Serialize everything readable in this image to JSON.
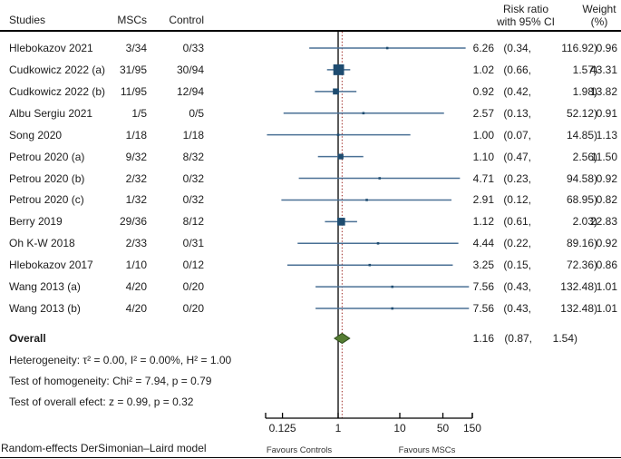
{
  "header": {
    "col_studies": "Studies",
    "col_mscs": "MSCs",
    "col_control": "Control",
    "col_effect_line1": "Risk ratio",
    "col_effect_line2": "with 95% CI",
    "col_weight_line1": "Weight",
    "col_weight_line2": "(%)"
  },
  "stats": {
    "heterogeneity": "Heterogeneity: τ² = 0.00, I² = 0.00%, H² = 1.00",
    "homogeneity": "Test of homogeneity: Chi² = 7.94, p = 0.79",
    "overall_effect": "Test of overall efect: z = 0.99, p = 0.32"
  },
  "footer": {
    "model_note": "Random-effects DerSimonian–Laird model"
  },
  "chart_data": {
    "type": "forest",
    "x_scale": "log",
    "x_axis": {
      "tick_labels": [
        "0.125",
        "1",
        "10",
        "50",
        "150"
      ],
      "tick_values": [
        0.125,
        1,
        10,
        50,
        150
      ],
      "range": [
        0.07,
        140
      ]
    },
    "ref_line_value": 1,
    "overall_estimate_line_value": 1.16,
    "favours": {
      "left": "Favours Controls",
      "right": "Favours MSCs"
    },
    "studies": [
      {
        "name": "Hlebokazov 2021",
        "msc": "3/34",
        "control": "0/33",
        "rr": 6.26,
        "ci": [
          0.34,
          116.92
        ],
        "rr_text": "6.26",
        "lb_text": "(0.34,",
        "ub_text": "116.92)",
        "weight": 0.96,
        "weight_text": "0.96"
      },
      {
        "name": "Cudkowicz 2022 (a)",
        "msc": "31/95",
        "control": "30/94",
        "rr": 1.02,
        "ci": [
          0.66,
          1.57
        ],
        "rr_text": "1.02",
        "lb_text": "(0.66,",
        "ub_text": "1.57)",
        "weight": 43.31,
        "weight_text": "43.31"
      },
      {
        "name": "Cudkowicz 2022 (b)",
        "msc": "11/95",
        "control": "12/94",
        "rr": 0.92,
        "ci": [
          0.42,
          1.98
        ],
        "rr_text": "0.92",
        "lb_text": "(0.42,",
        "ub_text": "1.98)",
        "weight": 13.82,
        "weight_text": "13.82"
      },
      {
        "name": "Albu Sergiu 2021",
        "msc": "1/5",
        "control": "0/5",
        "rr": 2.57,
        "ci": [
          0.13,
          52.12
        ],
        "rr_text": "2.57",
        "lb_text": "(0.13,",
        "ub_text": "52.12)",
        "weight": 0.91,
        "weight_text": "0.91"
      },
      {
        "name": "Song 2020",
        "msc": "1/18",
        "control": "1/18",
        "rr": 1.0,
        "ci": [
          0.07,
          14.85
        ],
        "rr_text": "1.00",
        "lb_text": "(0.07,",
        "ub_text": "14.85)",
        "weight": 1.13,
        "weight_text": "1.13"
      },
      {
        "name": "Petrou 2020 (a)",
        "msc": "9/32",
        "control": "8/32",
        "rr": 1.1,
        "ci": [
          0.47,
          2.56
        ],
        "rr_text": "1.10",
        "lb_text": "(0.47,",
        "ub_text": "2.56)",
        "weight": 11.5,
        "weight_text": "11.50"
      },
      {
        "name": "Petrou 2020 (b)",
        "msc": "2/32",
        "control": "0/32",
        "rr": 4.71,
        "ci": [
          0.23,
          94.58
        ],
        "rr_text": "4.71",
        "lb_text": "(0.23,",
        "ub_text": "94.58)",
        "weight": 0.92,
        "weight_text": "0.92"
      },
      {
        "name": "Petrou 2020 (c)",
        "msc": "1/32",
        "control": "0/32",
        "rr": 2.91,
        "ci": [
          0.12,
          68.95
        ],
        "rr_text": "2.91",
        "lb_text": "(0.12,",
        "ub_text": "68.95)",
        "weight": 0.82,
        "weight_text": "0.82"
      },
      {
        "name": "Berry 2019",
        "msc": "29/36",
        "control": "8/12",
        "rr": 1.12,
        "ci": [
          0.61,
          2.03
        ],
        "rr_text": "1.12",
        "lb_text": "(0.61,",
        "ub_text": "2.03)",
        "weight": 22.83,
        "weight_text": "22.83"
      },
      {
        "name": "Oh K-W 2018",
        "msc": "2/33",
        "control": "0/31",
        "rr": 4.44,
        "ci": [
          0.22,
          89.16
        ],
        "rr_text": "4.44",
        "lb_text": "(0.22,",
        "ub_text": "89.16)",
        "weight": 0.92,
        "weight_text": "0.92"
      },
      {
        "name": "Hlebokazov 2017",
        "msc": "1/10",
        "control": "0/12",
        "rr": 3.25,
        "ci": [
          0.15,
          72.36
        ],
        "rr_text": "3.25",
        "lb_text": "(0.15,",
        "ub_text": "72.36)",
        "weight": 0.86,
        "weight_text": "0.86"
      },
      {
        "name": "Wang 2013 (a)",
        "msc": "4/20",
        "control": "0/20",
        "rr": 7.56,
        "ci": [
          0.43,
          132.48
        ],
        "rr_text": "7.56",
        "lb_text": "(0.43,",
        "ub_text": "132.48)",
        "weight": 1.01,
        "weight_text": "1.01"
      },
      {
        "name": "Wang 2013 (b)",
        "msc": "4/20",
        "control": "0/20",
        "rr": 7.56,
        "ci": [
          0.43,
          132.48
        ],
        "rr_text": "7.56",
        "lb_text": "(0.43,",
        "ub_text": "132.48)",
        "weight": 1.01,
        "weight_text": "1.01"
      }
    ],
    "overall": {
      "label": "Overall",
      "rr": 1.16,
      "ci": [
        0.87,
        1.54
      ],
      "rr_text": "1.16",
      "lb_text": "(0.87,",
      "ub_text": "1.54)"
    },
    "colors": {
      "ci_line": "#4a7095",
      "marker": "#1e4c70",
      "diamond_fill": "#567d33",
      "diamond_stroke": "#2f4d1d",
      "ref_line": "#000000",
      "overall_ref_line": "#a73b36",
      "text": "#1c1c1c"
    }
  }
}
